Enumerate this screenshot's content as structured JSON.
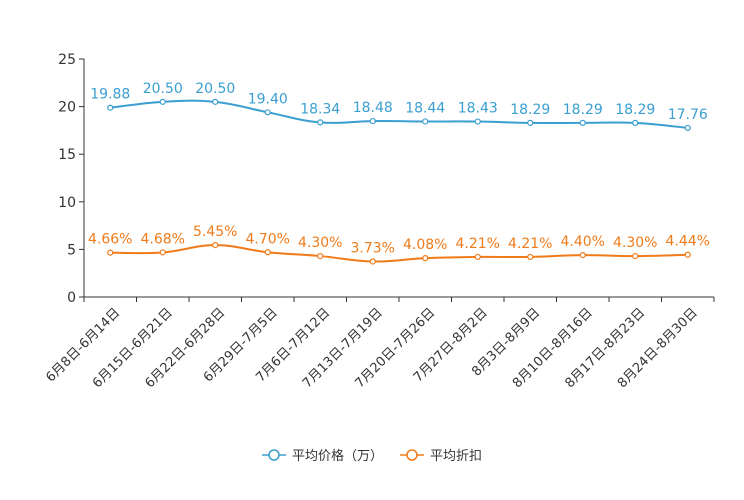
{
  "chart_data": {
    "type": "line",
    "title": "",
    "xlabel": "",
    "ylabel": "",
    "ylim": [
      0,
      25
    ],
    "yticks": [
      0,
      5,
      10,
      15,
      20,
      25
    ],
    "grid": false,
    "legend_position": "bottom",
    "categories": [
      "6月8日-6月14日",
      "6月15日-6月21日",
      "6月22日-6月28日",
      "6月29日-7月5日",
      "7月6日-7月12日",
      "7月13日-7月19日",
      "7月20日-7月26日",
      "7月27日-8月2日",
      "8月3日-8月9日",
      "8月10日-8月16日",
      "8月17日-8月23日",
      "8月24日-8月30日"
    ],
    "series": [
      {
        "name": "平均价格（万）",
        "color": "#3a9fd0",
        "values": [
          19.88,
          20.5,
          20.5,
          19.4,
          18.34,
          18.48,
          18.44,
          18.43,
          18.29,
          18.29,
          18.29,
          17.76
        ],
        "labels": [
          "19.88",
          "20.50",
          "20.50",
          "19.40",
          "18.34",
          "18.48",
          "18.44",
          "18.43",
          "18.29",
          "18.29",
          "18.29",
          "17.76"
        ]
      },
      {
        "name": "平均折扣",
        "color": "#f07b1a",
        "values": [
          4.66,
          4.68,
          5.45,
          4.7,
          4.3,
          3.73,
          4.08,
          4.21,
          4.21,
          4.4,
          4.3,
          4.44
        ],
        "labels": [
          "4.66%",
          "4.68%",
          "5.45%",
          "4.70%",
          "4.30%",
          "3.73%",
          "4.08%",
          "4.21%",
          "4.21%",
          "4.40%",
          "4.30%",
          "4.44%"
        ]
      }
    ]
  }
}
